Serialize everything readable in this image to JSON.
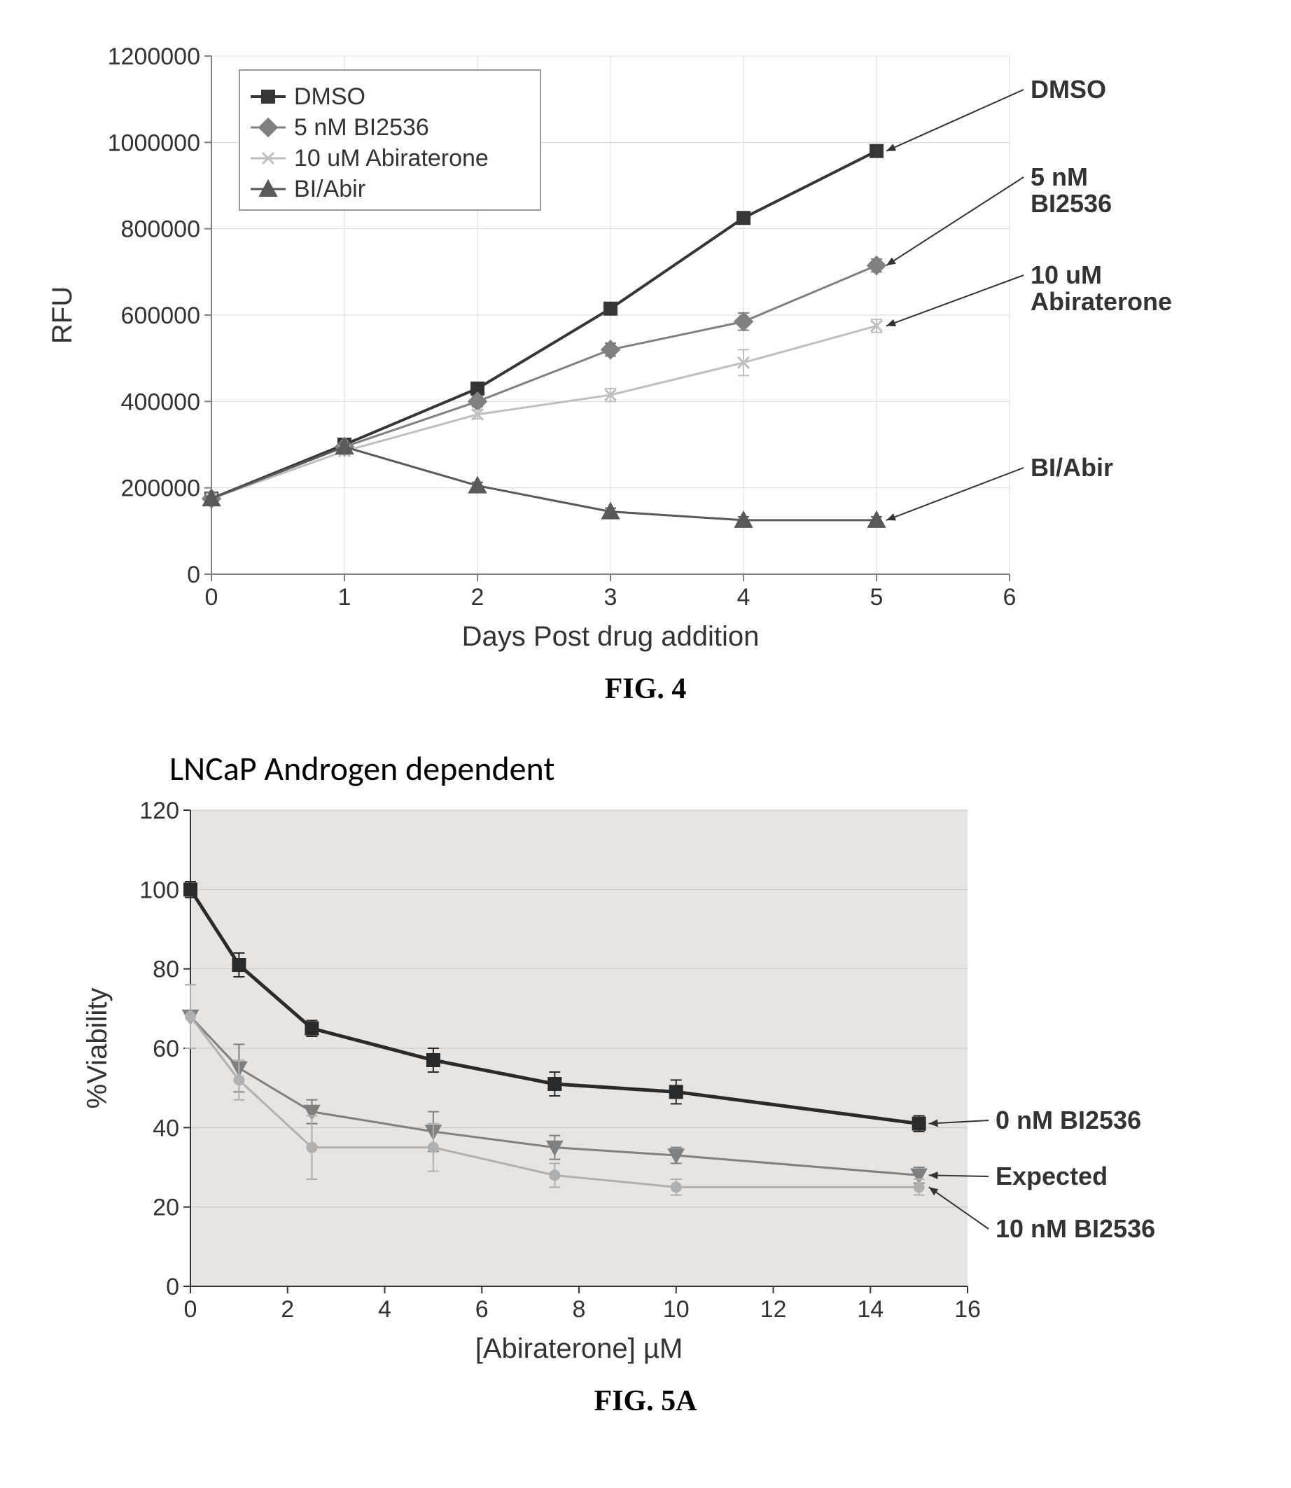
{
  "fig4": {
    "caption": "FIG. 4",
    "type": "line",
    "ylabel": "RFU",
    "xlabel": "Days Post drug addition",
    "xlim": [
      0,
      6
    ],
    "ylim": [
      0,
      1200000
    ],
    "xticks": [
      0,
      1,
      2,
      3,
      4,
      5,
      6
    ],
    "yticks": [
      0,
      200000,
      400000,
      600000,
      800000,
      1000000,
      1200000
    ],
    "background_color": "#ffffff",
    "plot_bg_color": "#ffffff",
    "grid_color": "#d9d9d9",
    "axis_color": "#808080",
    "label_fontsize": 40,
    "tick_fontsize": 34,
    "legend_box": true,
    "series": [
      {
        "name": "DMSO",
        "label": "DMSO",
        "color": "#353535",
        "marker": "square",
        "marker_size": 18,
        "line_width": 4,
        "x": [
          0,
          1,
          2,
          3,
          4,
          5
        ],
        "y": [
          175000,
          300000,
          430000,
          615000,
          825000,
          980000
        ],
        "err": [
          5000,
          5000,
          8000,
          10000,
          10000,
          10000
        ],
        "annotation": "DMSO"
      },
      {
        "name": "5nM_BI2536",
        "label": "5 nM BI2536",
        "color": "#808080",
        "marker": "diamond",
        "marker_size": 18,
        "line_width": 3,
        "x": [
          0,
          1,
          2,
          3,
          4,
          5
        ],
        "y": [
          175000,
          295000,
          400000,
          520000,
          585000,
          715000
        ],
        "err": [
          5000,
          5000,
          12000,
          15000,
          20000,
          15000
        ],
        "annotation": "5 nM BI2536"
      },
      {
        "name": "10uM_Abiraterone",
        "label": "10 uM Abiraterone",
        "color": "#bfbfbf",
        "marker": "x",
        "marker_size": 16,
        "line_width": 3,
        "x": [
          0,
          1,
          2,
          3,
          4,
          5
        ],
        "y": [
          175000,
          285000,
          370000,
          415000,
          490000,
          575000
        ],
        "err": [
          5000,
          8000,
          10000,
          15000,
          30000,
          15000
        ],
        "annotation": "10 uM Abiraterone"
      },
      {
        "name": "BI_Abir",
        "label": "BI/Abir",
        "color": "#595959",
        "marker": "triangle",
        "marker_size": 18,
        "line_width": 3,
        "x": [
          0,
          1,
          2,
          3,
          4,
          5
        ],
        "y": [
          175000,
          295000,
          205000,
          145000,
          125000,
          125000
        ],
        "err": [
          5000,
          8000,
          8000,
          8000,
          8000,
          8000
        ],
        "annotation": "BI/Abir"
      }
    ]
  },
  "fig5a": {
    "caption": "FIG. 5A",
    "title": "LNCaP Androgen dependent",
    "type": "line",
    "ylabel": "%Viability",
    "xlabel": "[Abiraterone] µM",
    "xlim": [
      0,
      16
    ],
    "ylim": [
      0,
      120
    ],
    "xticks": [
      0,
      2,
      4,
      6,
      8,
      10,
      12,
      14,
      16
    ],
    "yticks": [
      0,
      20,
      40,
      60,
      80,
      100,
      120
    ],
    "background_color": "#ffffff",
    "plot_bg_color": "#e8e4e1",
    "grid_color": "#c8c4c0",
    "axis_color": "#333333",
    "label_fontsize": 40,
    "tick_fontsize": 34,
    "series": [
      {
        "name": "0nM_BI2536",
        "label": "0 nM BI2536",
        "color": "#2a2a2a",
        "marker": "square",
        "marker_size": 18,
        "line_width": 5,
        "x": [
          0,
          1,
          2.5,
          5,
          7.5,
          10,
          15
        ],
        "y": [
          100,
          81,
          65,
          57,
          51,
          49,
          41
        ],
        "err": [
          2,
          3,
          2,
          3,
          3,
          3,
          2
        ],
        "annotation": "0 nM BI2536"
      },
      {
        "name": "Expected",
        "label": "Expected",
        "color": "#808080",
        "marker": "triangle-down",
        "marker_size": 16,
        "line_width": 3,
        "x": [
          0,
          1,
          2.5,
          5,
          7.5,
          10,
          15
        ],
        "y": [
          68,
          55,
          44,
          39,
          35,
          33,
          28
        ],
        "err": [
          8,
          6,
          3,
          5,
          3,
          2,
          2
        ],
        "annotation": "Expected"
      },
      {
        "name": "10nM_BI2536",
        "label": "10 nM BI2536",
        "color": "#b0b0b0",
        "marker": "circle",
        "marker_size": 14,
        "line_width": 3,
        "x": [
          0,
          1,
          2.5,
          5,
          7.5,
          10,
          15
        ],
        "y": [
          68,
          52,
          35,
          35,
          28,
          25,
          25
        ],
        "err": [
          8,
          5,
          8,
          6,
          3,
          2,
          2
        ],
        "annotation": "10 nM BI2536"
      }
    ]
  }
}
